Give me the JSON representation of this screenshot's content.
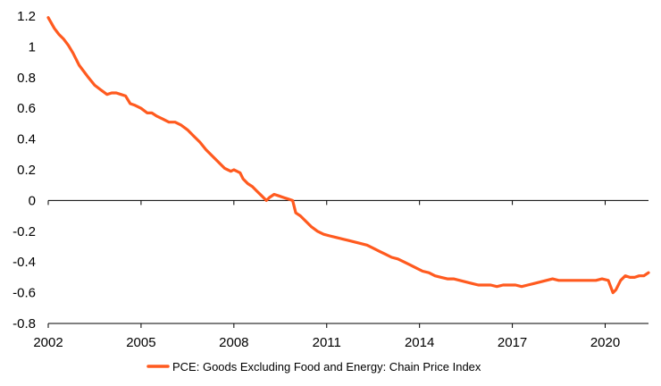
{
  "chart_data": {
    "type": "line",
    "title": "",
    "xlabel": "",
    "ylabel": "",
    "xlim": [
      2002,
      2021.4
    ],
    "ylim": [
      -0.8,
      1.2
    ],
    "grid": false,
    "legend_position": "bottom-center",
    "y_ticks": [
      "1.2",
      "1",
      "0.8",
      "0.6",
      "0.4",
      "0.2",
      "0",
      "-0.2",
      "-0.4",
      "-0.6",
      "-0.8"
    ],
    "y_tick_values": [
      1.2,
      1.0,
      0.8,
      0.6,
      0.4,
      0.2,
      0,
      -0.2,
      -0.4,
      -0.6,
      -0.8
    ],
    "x_ticks": [
      "2002",
      "2005",
      "2008",
      "2011",
      "2014",
      "2017",
      "2020"
    ],
    "x_tick_values": [
      2002,
      2005,
      2008,
      2011,
      2014,
      2017,
      2020
    ],
    "series": [
      {
        "name": "PCE: Goods Excluding Food and Energy: Chain Price Index",
        "color": "#ff5a1f",
        "x": [
          2002.0,
          2002.2,
          2002.35,
          2002.5,
          2002.65,
          2002.8,
          2003.0,
          2003.15,
          2003.3,
          2003.5,
          2003.7,
          2003.9,
          2004.05,
          2004.2,
          2004.35,
          2004.5,
          2004.65,
          2004.8,
          2005.0,
          2005.2,
          2005.35,
          2005.5,
          2005.7,
          2005.9,
          2006.1,
          2006.3,
          2006.5,
          2006.7,
          2006.9,
          2007.1,
          2007.3,
          2007.5,
          2007.7,
          2007.9,
          2008.0,
          2008.1,
          2008.2,
          2008.3,
          2008.45,
          2008.6,
          2008.75,
          2008.9,
          2009.05,
          2009.15,
          2009.3,
          2009.45,
          2009.6,
          2009.75,
          2009.9,
          2010.0,
          2010.15,
          2010.3,
          2010.5,
          2010.7,
          2010.9,
          2011.1,
          2011.3,
          2011.5,
          2011.7,
          2011.9,
          2012.1,
          2012.3,
          2012.5,
          2012.7,
          2012.9,
          2013.1,
          2013.3,
          2013.5,
          2013.7,
          2013.9,
          2014.1,
          2014.3,
          2014.5,
          2014.7,
          2014.9,
          2015.1,
          2015.3,
          2015.5,
          2015.7,
          2015.9,
          2016.1,
          2016.3,
          2016.5,
          2016.7,
          2016.9,
          2017.1,
          2017.3,
          2017.5,
          2017.7,
          2017.9,
          2018.1,
          2018.3,
          2018.5,
          2018.7,
          2018.9,
          2019.1,
          2019.3,
          2019.5,
          2019.7,
          2019.9,
          2020.1,
          2020.25,
          2020.35,
          2020.5,
          2020.65,
          2020.8,
          2020.95,
          2021.1,
          2021.25,
          2021.4
        ],
        "values": [
          1.19,
          1.12,
          1.08,
          1.05,
          1.01,
          0.96,
          0.88,
          0.84,
          0.8,
          0.75,
          0.72,
          0.69,
          0.7,
          0.7,
          0.69,
          0.68,
          0.63,
          0.62,
          0.6,
          0.57,
          0.57,
          0.55,
          0.53,
          0.51,
          0.51,
          0.49,
          0.46,
          0.42,
          0.38,
          0.33,
          0.29,
          0.25,
          0.21,
          0.19,
          0.2,
          0.19,
          0.18,
          0.14,
          0.11,
          0.09,
          0.06,
          0.03,
          0.0,
          0.02,
          0.04,
          0.03,
          0.02,
          0.01,
          0.0,
          -0.08,
          -0.1,
          -0.13,
          -0.17,
          -0.2,
          -0.22,
          -0.23,
          -0.24,
          -0.25,
          -0.26,
          -0.27,
          -0.28,
          -0.29,
          -0.31,
          -0.33,
          -0.35,
          -0.37,
          -0.38,
          -0.4,
          -0.42,
          -0.44,
          -0.46,
          -0.47,
          -0.49,
          -0.5,
          -0.51,
          -0.51,
          -0.52,
          -0.53,
          -0.54,
          -0.55,
          -0.55,
          -0.55,
          -0.56,
          -0.55,
          -0.55,
          -0.55,
          -0.56,
          -0.55,
          -0.54,
          -0.53,
          -0.52,
          -0.51,
          -0.52,
          -0.52,
          -0.52,
          -0.52,
          -0.52,
          -0.52,
          -0.52,
          -0.51,
          -0.52,
          -0.6,
          -0.58,
          -0.52,
          -0.49,
          -0.5,
          -0.5,
          -0.49,
          -0.49,
          -0.47
        ]
      }
    ]
  }
}
